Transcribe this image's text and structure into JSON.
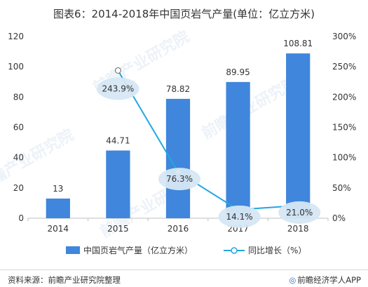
{
  "title": "图表6：2014-2018年中国页岩气产量(单位：亿立方米)",
  "footer": {
    "source": "资料来源：前瞻产业研究院整理",
    "brand": "前瞻经济学人APP",
    "brand_icon": "qianzhan-logo-icon"
  },
  "watermark": "前瞻产业研究院",
  "colors": {
    "bar": "#3f86dc",
    "line": "#22a7e0",
    "label_bubble": "#d6e7f3",
    "grid": "#e3e3e3"
  },
  "chart_data": {
    "type": "bar",
    "categories": [
      "2014",
      "2015",
      "2016",
      "2017",
      "2018"
    ],
    "series": [
      {
        "name": "中国页岩气产量（亿立方米）",
        "type": "bar",
        "axis": "left",
        "values": [
          13,
          44.71,
          78.82,
          89.95,
          108.81
        ],
        "labels": [
          "13",
          "44.71",
          "78.82",
          "89.95",
          "108.81"
        ]
      },
      {
        "name": "同比增长（%）",
        "type": "line",
        "axis": "right",
        "values": [
          null,
          243.9,
          76.3,
          14.1,
          21.0
        ],
        "labels": [
          "",
          "243.9%",
          "76.3%",
          "14.1%",
          "21.0%"
        ]
      }
    ],
    "y_left": {
      "min": 0,
      "max": 120,
      "ticks": [
        "0",
        "20",
        "40",
        "60",
        "80",
        "100",
        "120"
      ]
    },
    "y_right": {
      "min": 0,
      "max": 300,
      "ticks": [
        "0%",
        "50%",
        "100%",
        "150%",
        "200%",
        "250%",
        "300%"
      ]
    },
    "grid": false,
    "legend": "bottom"
  }
}
